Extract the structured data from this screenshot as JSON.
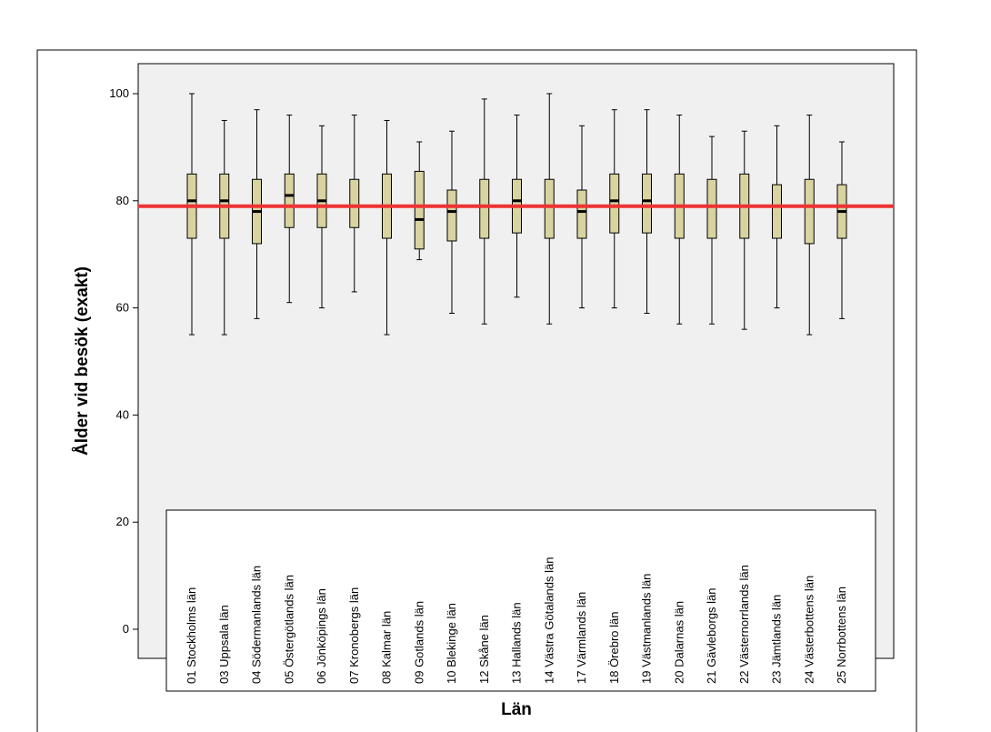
{
  "chart_data": {
    "type": "boxplot",
    "xlabel": "Län",
    "ylabel": "Ålder vid besök (exakt)",
    "ylim": [
      0,
      100
    ],
    "yticks": [
      0,
      20,
      40,
      60,
      80,
      100
    ],
    "reference_line": 79,
    "categories": [
      "01 Stockholms län",
      "03 Uppsala län",
      "04 Södermanlands län",
      "05 Östergötlands län",
      "06 Jönköpings län",
      "07 Kronobergs län",
      "08 Kalmar län",
      "09 Gotlands län",
      "10 Blekinge län",
      "12 Skåne län",
      "13 Hallands län",
      "14 Västra Götalands län",
      "17 Värmlands län",
      "18 Örebro län",
      "19 Västmanlands län",
      "20 Dalarnas län",
      "21 Gävleborgs län",
      "22 Västernorrlands län",
      "23 Jämtlands län",
      "24 Västerbottens län",
      "25 Norrbottens län"
    ],
    "boxes": [
      {
        "min": 55,
        "q1": 73,
        "median": 80,
        "q3": 85,
        "max": 100
      },
      {
        "min": 55,
        "q1": 73,
        "median": 80,
        "q3": 85,
        "max": 95
      },
      {
        "min": 58,
        "q1": 72,
        "median": 78,
        "q3": 84,
        "max": 97
      },
      {
        "min": 61,
        "q1": 75,
        "median": 81,
        "q3": 85,
        "max": 96
      },
      {
        "min": 60,
        "q1": 75,
        "median": 80,
        "q3": 85,
        "max": 94
      },
      {
        "min": 63,
        "q1": 75,
        "median": 79,
        "q3": 84,
        "max": 96
      },
      {
        "min": 55,
        "q1": 73,
        "median": 79,
        "q3": 85,
        "max": 95
      },
      {
        "min": 69,
        "q1": 71,
        "median": 76.5,
        "q3": 85.5,
        "max": 91
      },
      {
        "min": 59,
        "q1": 72.5,
        "median": 78,
        "q3": 82,
        "max": 93
      },
      {
        "min": 57,
        "q1": 73,
        "median": 79,
        "q3": 84,
        "max": 99
      },
      {
        "min": 62,
        "q1": 74,
        "median": 80,
        "q3": 84,
        "max": 96
      },
      {
        "min": 57,
        "q1": 73,
        "median": 79,
        "q3": 84,
        "max": 100
      },
      {
        "min": 60,
        "q1": 73,
        "median": 78,
        "q3": 82,
        "max": 94
      },
      {
        "min": 60,
        "q1": 74,
        "median": 80,
        "q3": 85,
        "max": 97
      },
      {
        "min": 59,
        "q1": 74,
        "median": 80,
        "q3": 85,
        "max": 97
      },
      {
        "min": 57,
        "q1": 73,
        "median": 79,
        "q3": 85,
        "max": 96
      },
      {
        "min": 57,
        "q1": 73,
        "median": 79,
        "q3": 84,
        "max": 92
      },
      {
        "min": 56,
        "q1": 73,
        "median": 79,
        "q3": 85,
        "max": 93
      },
      {
        "min": 60,
        "q1": 73,
        "median": 79,
        "q3": 83,
        "max": 94
      },
      {
        "min": 55,
        "q1": 72,
        "median": 79,
        "q3": 84,
        "max": 96
      },
      {
        "min": 58,
        "q1": 73,
        "median": 78,
        "q3": 83,
        "max": 91
      }
    ],
    "colors": {
      "plot_background": "#f0f0f0",
      "box_fill": "#d9d3a0",
      "reference_line": "#ee3333",
      "median": "#000000"
    },
    "grid": false
  }
}
